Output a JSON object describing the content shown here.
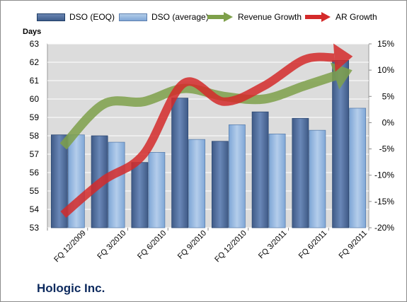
{
  "company_name": "Hologic Inc.",
  "colors": {
    "dso_eoq": "#4f6d9a",
    "dso_avg": "#8db3e2",
    "revenue_growth": "#7ea04a",
    "ar_growth": "#d42a2a",
    "plot_bg": "#dcdcdc"
  },
  "chart_data": {
    "type": "bar",
    "categories": [
      "FQ 12/2009",
      "FQ 3/2010",
      "FQ 6/2010",
      "FQ 9/2010",
      "FQ 12/2010",
      "FQ 3/2011",
      "FQ 6/2011",
      "FQ 9/2011"
    ],
    "ylabel": "Days",
    "ylim": [
      53,
      63
    ],
    "yticks": [
      53,
      54,
      55,
      56,
      57,
      58,
      59,
      60,
      61,
      62,
      63
    ],
    "y2lim": [
      -20,
      15
    ],
    "y2ticks": [
      "-20%",
      "-15%",
      "-10%",
      "-5%",
      "0%",
      "5%",
      "10%",
      "15%"
    ],
    "legend_position": "top",
    "grid": true,
    "series": [
      {
        "name": "DSO (EOQ)",
        "type": "bar",
        "axis": "left",
        "values": [
          58.05,
          58.0,
          56.55,
          60.05,
          57.7,
          59.3,
          58.95,
          62.1
        ]
      },
      {
        "name": "DSO (average)",
        "type": "bar",
        "axis": "left",
        "values": [
          58.05,
          57.65,
          57.1,
          57.8,
          58.6,
          58.1,
          58.3,
          59.5
        ]
      },
      {
        "name": "Revenue Growth",
        "type": "arrow",
        "axis": "right",
        "unit": "%",
        "values": [
          -4.5,
          3.5,
          4.0,
          6.5,
          5.0,
          4.5,
          7.0,
          9.5
        ]
      },
      {
        "name": "AR Growth",
        "type": "arrow",
        "axis": "right",
        "unit": "%",
        "values": [
          -17.5,
          -11.0,
          -6.0,
          7.5,
          4.0,
          7.0,
          12.0,
          12.5
        ]
      }
    ]
  }
}
